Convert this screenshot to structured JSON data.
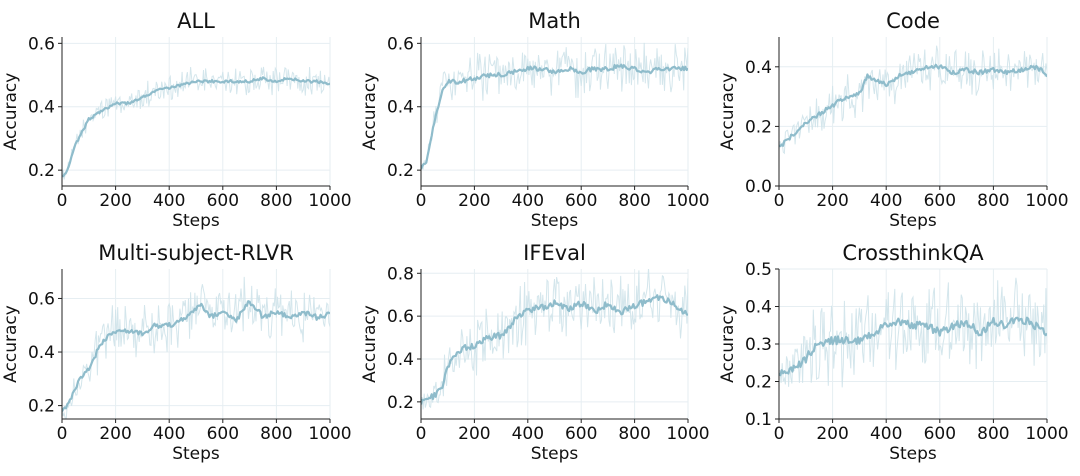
{
  "figure": {
    "smooth_color": "#8fbccb",
    "raw_color": "#cfe3ea",
    "grid_color": "#e6eef2"
  },
  "chart_data": [
    {
      "type": "line",
      "title": "ALL",
      "xlabel": "Steps",
      "ylabel": "Accuracy",
      "xlim": [
        0,
        1000
      ],
      "ylim": [
        0.15,
        0.62
      ],
      "xticks": [
        0,
        200,
        400,
        600,
        800,
        1000
      ],
      "yticks": [
        0.2,
        0.4,
        0.6
      ],
      "ytick_labels": [
        "0.2",
        "0.4",
        "0.6"
      ],
      "grid": true,
      "noise": 0.035,
      "series": [
        {
          "x": [
            0,
            20,
            50,
            100,
            150,
            200,
            250,
            300,
            350,
            400,
            450,
            500,
            550,
            600,
            650,
            700,
            750,
            800,
            850,
            900,
            950,
            1000
          ],
          "y": [
            0.18,
            0.2,
            0.28,
            0.36,
            0.39,
            0.41,
            0.41,
            0.43,
            0.45,
            0.46,
            0.47,
            0.48,
            0.48,
            0.48,
            0.48,
            0.48,
            0.49,
            0.48,
            0.49,
            0.48,
            0.48,
            0.47
          ]
        }
      ]
    },
    {
      "type": "line",
      "title": "Math",
      "xlabel": "Steps",
      "ylabel": "Accuracy",
      "xlim": [
        0,
        1000
      ],
      "ylim": [
        0.15,
        0.62
      ],
      "xticks": [
        0,
        200,
        400,
        600,
        800,
        1000
      ],
      "yticks": [
        0.2,
        0.4,
        0.6
      ],
      "ytick_labels": [
        "0.2",
        "0.4",
        "0.6"
      ],
      "grid": true,
      "noise": 0.06,
      "series": [
        {
          "x": [
            0,
            20,
            50,
            80,
            100,
            150,
            200,
            250,
            300,
            350,
            400,
            450,
            500,
            550,
            600,
            650,
            700,
            750,
            800,
            850,
            900,
            950,
            1000
          ],
          "y": [
            0.2,
            0.23,
            0.35,
            0.45,
            0.48,
            0.48,
            0.49,
            0.5,
            0.5,
            0.51,
            0.52,
            0.52,
            0.51,
            0.52,
            0.51,
            0.52,
            0.52,
            0.53,
            0.52,
            0.51,
            0.52,
            0.52,
            0.52
          ]
        }
      ]
    },
    {
      "type": "line",
      "title": "Code",
      "xlabel": "Steps",
      "ylabel": "Accuracy",
      "xlim": [
        0,
        1000
      ],
      "ylim": [
        0.0,
        0.5
      ],
      "xticks": [
        0,
        200,
        400,
        600,
        800,
        1000
      ],
      "yticks": [
        0.0,
        0.2,
        0.4
      ],
      "ytick_labels": [
        "0.0",
        "0.2",
        "0.4"
      ],
      "grid": true,
      "noise": 0.06,
      "series": [
        {
          "x": [
            0,
            50,
            100,
            150,
            200,
            250,
            300,
            330,
            350,
            400,
            450,
            500,
            550,
            600,
            650,
            700,
            750,
            800,
            850,
            900,
            950,
            980,
            1000
          ],
          "y": [
            0.13,
            0.17,
            0.21,
            0.24,
            0.27,
            0.3,
            0.31,
            0.37,
            0.36,
            0.34,
            0.37,
            0.38,
            0.4,
            0.4,
            0.38,
            0.39,
            0.38,
            0.39,
            0.38,
            0.39,
            0.4,
            0.39,
            0.36
          ]
        }
      ]
    },
    {
      "type": "line",
      "title": "Multi-subject-RLVR",
      "xlabel": "Steps",
      "ylabel": "Accuracy",
      "xlim": [
        0,
        1000
      ],
      "ylim": [
        0.15,
        0.71
      ],
      "xticks": [
        0,
        200,
        400,
        600,
        800,
        1000
      ],
      "yticks": [
        0.2,
        0.4,
        0.6
      ],
      "ytick_labels": [
        "0.2",
        "0.4",
        "0.6"
      ],
      "grid": true,
      "noise": 0.08,
      "series": [
        {
          "x": [
            0,
            30,
            60,
            100,
            130,
            160,
            200,
            250,
            300,
            350,
            400,
            450,
            500,
            520,
            550,
            600,
            650,
            700,
            750,
            800,
            850,
            900,
            950,
            1000
          ],
          "y": [
            0.17,
            0.22,
            0.29,
            0.34,
            0.4,
            0.45,
            0.48,
            0.48,
            0.47,
            0.5,
            0.5,
            0.52,
            0.56,
            0.58,
            0.53,
            0.55,
            0.52,
            0.59,
            0.53,
            0.55,
            0.53,
            0.55,
            0.53,
            0.54
          ]
        }
      ]
    },
    {
      "type": "line",
      "title": "IFEval",
      "xlabel": "Steps",
      "ylabel": "Accuracy",
      "xlim": [
        0,
        1000
      ],
      "ylim": [
        0.12,
        0.82
      ],
      "xticks": [
        0,
        200,
        400,
        600,
        800,
        1000
      ],
      "yticks": [
        0.2,
        0.4,
        0.6,
        0.8
      ],
      "ytick_labels": [
        "0.2",
        "0.4",
        "0.6",
        "0.8"
      ],
      "grid": true,
      "noise": 0.12,
      "series": [
        {
          "x": [
            0,
            20,
            50,
            80,
            100,
            130,
            160,
            200,
            250,
            300,
            350,
            400,
            450,
            500,
            550,
            600,
            650,
            700,
            750,
            800,
            850,
            900,
            950,
            1000
          ],
          "y": [
            0.2,
            0.21,
            0.23,
            0.27,
            0.37,
            0.42,
            0.45,
            0.46,
            0.5,
            0.51,
            0.58,
            0.63,
            0.64,
            0.66,
            0.63,
            0.66,
            0.62,
            0.66,
            0.62,
            0.65,
            0.67,
            0.69,
            0.65,
            0.61
          ]
        }
      ]
    },
    {
      "type": "line",
      "title": "CrossthinkQA",
      "xlabel": "Steps",
      "ylabel": "Accuracy",
      "xlim": [
        0,
        1000
      ],
      "ylim": [
        0.1,
        0.5
      ],
      "xticks": [
        0,
        200,
        400,
        600,
        800,
        1000
      ],
      "yticks": [
        0.1,
        0.2,
        0.3,
        0.4,
        0.5
      ],
      "ytick_labels": [
        "0.1",
        "0.2",
        "0.3",
        "0.4",
        "0.5"
      ],
      "grid": true,
      "noise": 0.09,
      "series": [
        {
          "x": [
            0,
            20,
            50,
            100,
            130,
            160,
            200,
            250,
            300,
            350,
            400,
            450,
            500,
            550,
            600,
            650,
            700,
            750,
            800,
            850,
            900,
            950,
            1000
          ],
          "y": [
            0.22,
            0.22,
            0.23,
            0.26,
            0.29,
            0.3,
            0.31,
            0.31,
            0.31,
            0.33,
            0.35,
            0.36,
            0.35,
            0.35,
            0.33,
            0.35,
            0.36,
            0.33,
            0.36,
            0.35,
            0.37,
            0.35,
            0.33
          ]
        }
      ]
    }
  ]
}
